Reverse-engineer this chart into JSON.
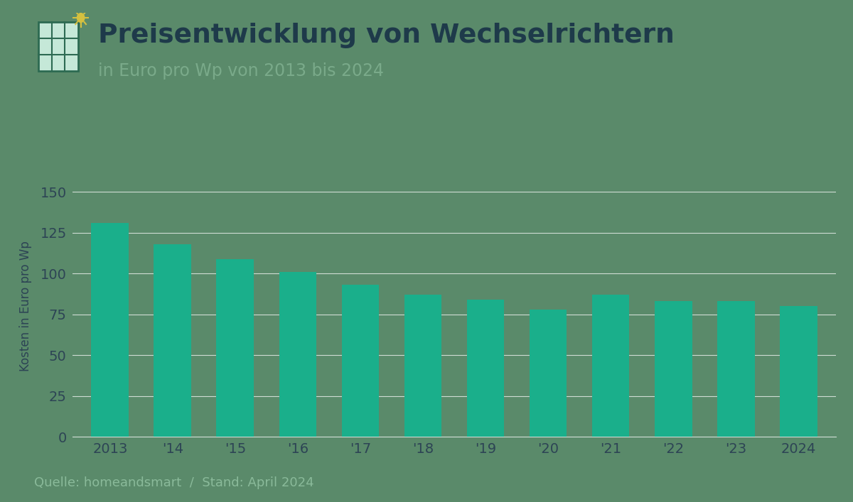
{
  "title": "Preisentwicklung von Wechselrichtern",
  "subtitle": "in Euro pro Wp von 2013 bis 2024",
  "ylabel": "Kosten in Euro pro Wp",
  "source": "Quelle: homeandsmart  /  Stand: April 2024",
  "categories": [
    "2013",
    "'14",
    "'15",
    "'16",
    "'17",
    "'18",
    "'19",
    "'20",
    "'21",
    "'22",
    "'23",
    "2024"
  ],
  "values": [
    131,
    118,
    109,
    101,
    93,
    87,
    84,
    78,
    87,
    83,
    83,
    80
  ],
  "bar_color": "#1aaf8b",
  "background_color": "#5a8a6a",
  "grid_color": "#d0ddd5",
  "tick_color": "#2d4455",
  "title_color": "#1e3a4a",
  "subtitle_color": "#7aaa8a",
  "source_color": "#8aba9a",
  "ylim": [
    0,
    160
  ],
  "yticks": [
    0,
    25,
    50,
    75,
    100,
    125,
    150
  ],
  "title_fontsize": 27,
  "subtitle_fontsize": 17,
  "ylabel_fontsize": 12,
  "tick_fontsize": 14,
  "source_fontsize": 13
}
